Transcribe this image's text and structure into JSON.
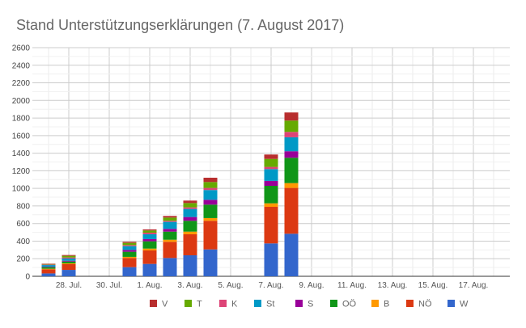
{
  "chart_data": {
    "type": "bar",
    "stacked": true,
    "title": "Stand Unterstützungserklärungen (7. August 2017)",
    "xlabel": "",
    "ylabel": "",
    "ylim": [
      0,
      2600
    ],
    "yticks": [
      0,
      200,
      400,
      600,
      800,
      1000,
      1200,
      1400,
      1600,
      1800,
      2000,
      2200,
      2400,
      2600
    ],
    "xticks": [
      {
        "date": "2017-07-28",
        "label": "28. Jul."
      },
      {
        "date": "2017-07-30",
        "label": "30. Jul."
      },
      {
        "date": "2017-08-01",
        "label": "1. Aug."
      },
      {
        "date": "2017-08-03",
        "label": "3. Aug."
      },
      {
        "date": "2017-08-05",
        "label": "5. Aug."
      },
      {
        "date": "2017-08-07",
        "label": "7. Aug."
      },
      {
        "date": "2017-08-09",
        "label": "9. Aug."
      },
      {
        "date": "2017-08-11",
        "label": "11. Aug."
      },
      {
        "date": "2017-08-13",
        "label": "13. Aug."
      },
      {
        "date": "2017-08-15",
        "label": "15. Aug."
      },
      {
        "date": "2017-08-17",
        "label": "17. Aug."
      }
    ],
    "xlim": [
      "2017-07-26",
      "2017-08-19"
    ],
    "grid": true,
    "legend_position": "bottom",
    "x": [
      "2017-07-27",
      "2017-07-28",
      "2017-07-31",
      "2017-08-01",
      "2017-08-02",
      "2017-08-03",
      "2017-08-04",
      "2017-08-07",
      "2017-08-08"
    ],
    "series": [
      {
        "name": "W",
        "color": "#3366cc",
        "values": [
          33,
          73,
          104,
          141,
          208,
          239,
          306,
          374,
          484
        ]
      },
      {
        "name": "NÖ",
        "color": "#dc3912",
        "values": [
          46,
          65,
          104,
          153,
          184,
          239,
          325,
          416,
          521
        ]
      },
      {
        "name": "B",
        "color": "#ff9900",
        "values": [
          7,
          9,
          13,
          21,
          24,
          30,
          31,
          40,
          55
        ]
      },
      {
        "name": "OÖ",
        "color": "#109618",
        "values": [
          18,
          21,
          58,
          83,
          92,
          123,
          153,
          199,
          288
        ]
      },
      {
        "name": "S",
        "color": "#990099",
        "values": [
          6,
          9,
          21,
          25,
          31,
          43,
          55,
          56,
          74
        ]
      },
      {
        "name": "St",
        "color": "#0099c6",
        "values": [
          18,
          25,
          43,
          55,
          80,
          92,
          111,
          134,
          159
        ]
      },
      {
        "name": "K",
        "color": "#dd4477",
        "values": [
          6,
          12,
          12,
          18,
          12,
          18,
          24,
          25,
          61
        ]
      },
      {
        "name": "T",
        "color": "#66aa00",
        "values": [
          6,
          19,
          25,
          25,
          37,
          49,
          67,
          91,
          129
        ]
      },
      {
        "name": "V",
        "color": "#b82e2e",
        "values": [
          4,
          9,
          12,
          12,
          18,
          28,
          49,
          50,
          92
        ]
      }
    ],
    "legend_order": [
      "V",
      "T",
      "K",
      "St",
      "S",
      "OÖ",
      "B",
      "NÖ",
      "W"
    ]
  }
}
